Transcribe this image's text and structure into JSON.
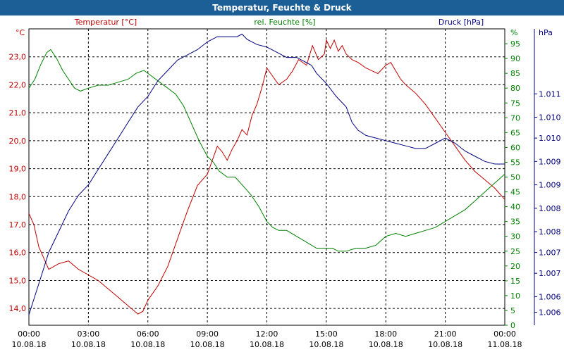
{
  "chart_data": {
    "type": "line",
    "title": "Temperatur, Feuchte & Druck",
    "x_ticks": [
      {
        "time": "00:00",
        "date": "10.08.18"
      },
      {
        "time": "03:00",
        "date": "10.08.18"
      },
      {
        "time": "06:00",
        "date": "10.08.18"
      },
      {
        "time": "09:00",
        "date": "10.08.18"
      },
      {
        "time": "12:00",
        "date": "10.08.18"
      },
      {
        "time": "15:00",
        "date": "10.08.18"
      },
      {
        "time": "18:00",
        "date": "10.08.18"
      },
      {
        "time": "21:00",
        "date": "10.08.18"
      },
      {
        "time": "00:00",
        "date": "11.08.18"
      }
    ],
    "xlim": [
      "10.08.18 00:00",
      "11.08.18 00:00"
    ],
    "axes": {
      "left": {
        "unit": "°C",
        "series_label": "Temperatur [°C]",
        "min": 13.4,
        "max": 24.0,
        "ticks": [
          "14,0",
          "15,0",
          "16,0",
          "17,0",
          "18,0",
          "19,0",
          "20,0",
          "21,0",
          "22,0",
          "23,0"
        ],
        "tick_values": [
          14,
          15,
          16,
          17,
          18,
          19,
          20,
          21,
          22,
          23
        ],
        "color": "#c00000"
      },
      "mid": {
        "unit": "%",
        "series_label": "rel. Feuchte [%]",
        "min": 0,
        "max": 100,
        "ticks": [
          "0",
          "5",
          "10",
          "15",
          "20",
          "25",
          "30",
          "35",
          "40",
          "45",
          "50",
          "55",
          "60",
          "65",
          "70",
          "75",
          "80",
          "85",
          "90",
          "95"
        ],
        "tick_values": [
          0,
          5,
          10,
          15,
          20,
          25,
          30,
          35,
          40,
          45,
          50,
          55,
          60,
          65,
          70,
          75,
          80,
          85,
          90,
          95
        ],
        "color": "#008000"
      },
      "right": {
        "unit": "hPa",
        "series_label": "Druck [hPa]",
        "min": 1005.6,
        "max": 1011.3,
        "ticks": [
          "1.006",
          "1.006",
          "1.007",
          "1.007",
          "1.008",
          "1.008",
          "1.009",
          "1.009",
          "1.010",
          "1.010",
          "1.011"
        ],
        "tick_values": [
          1005.85,
          1006.15,
          1006.6,
          1007.0,
          1007.4,
          1007.85,
          1008.3,
          1008.75,
          1009.2,
          1009.6,
          1010.05
        ],
        "color": "#000080"
      }
    },
    "series": [
      {
        "name": "Temperatur [°C]",
        "axis": "left",
        "color": "#c00000",
        "x_hours": [
          0,
          0.25,
          0.5,
          0.75,
          1,
          1.25,
          1.5,
          2,
          2.5,
          3,
          3.5,
          4,
          4.5,
          5,
          5.5,
          5.75,
          6,
          6.5,
          7,
          7.5,
          8,
          8.5,
          9,
          9.3,
          9.5,
          9.75,
          10,
          10.25,
          10.5,
          10.75,
          11,
          11.25,
          11.5,
          11.75,
          12,
          12.3,
          12.6,
          13,
          13.3,
          13.6,
          14,
          14.3,
          14.6,
          14.9,
          15,
          15.2,
          15.4,
          15.6,
          15.8,
          16,
          16.3,
          16.6,
          17,
          17.3,
          17.6,
          18,
          18.25,
          18.5,
          18.75,
          19,
          19.5,
          20,
          20.5,
          21,
          21.5,
          22,
          22.5,
          23,
          23.5,
          24
        ],
        "values": [
          17.4,
          17.0,
          16.2,
          15.8,
          15.4,
          15.5,
          15.6,
          15.7,
          15.4,
          15.2,
          15.0,
          14.7,
          14.4,
          14.1,
          13.8,
          13.9,
          14.3,
          14.8,
          15.5,
          16.5,
          17.5,
          18.4,
          18.8,
          19.4,
          19.8,
          19.6,
          19.3,
          19.7,
          20.0,
          20.4,
          20.2,
          20.9,
          21.3,
          21.9,
          22.6,
          22.3,
          22.0,
          22.2,
          22.5,
          22.9,
          22.7,
          23.4,
          22.9,
          23.1,
          23.6,
          23.3,
          23.6,
          23.2,
          23.4,
          23.1,
          22.9,
          22.8,
          22.6,
          22.5,
          22.4,
          22.7,
          22.8,
          22.5,
          22.2,
          22.0,
          21.7,
          21.3,
          20.8,
          20.3,
          19.8,
          19.3,
          18.9,
          18.6,
          18.3,
          17.9
        ]
      },
      {
        "name": "rel. Feuchte [%]",
        "axis": "mid",
        "color": "#008000",
        "x_hours": [
          0,
          0.3,
          0.6,
          0.9,
          1.1,
          1.4,
          1.7,
          2,
          2.3,
          2.6,
          3,
          3.5,
          4,
          4.5,
          5,
          5.4,
          5.8,
          6.2,
          6.6,
          7,
          7.4,
          7.8,
          8.2,
          8.6,
          9,
          9.3,
          9.6,
          10,
          10.4,
          10.8,
          11.2,
          11.6,
          12,
          12.3,
          12.6,
          13,
          13.5,
          14,
          14.5,
          15,
          15.3,
          15.6,
          16,
          16.5,
          17,
          17.5,
          18,
          18.5,
          19,
          19.5,
          20,
          20.5,
          21,
          21.5,
          22,
          22.5,
          23,
          23.5,
          24
        ],
        "values": [
          80,
          83,
          88,
          92,
          93,
          90,
          86,
          83,
          80,
          79,
          80,
          81,
          81,
          82,
          83,
          85,
          86,
          84,
          82,
          80,
          78,
          74,
          68,
          62,
          57,
          55,
          52,
          50,
          50,
          47,
          44,
          40,
          35,
          33,
          32,
          32,
          30,
          28,
          26,
          26,
          26,
          25,
          25,
          26,
          26,
          27,
          30,
          31,
          30,
          31,
          32,
          33,
          35,
          37,
          39,
          42,
          45,
          48,
          51
        ]
      },
      {
        "name": "Druck [hPa]",
        "axis": "right",
        "color": "#000080",
        "x_hours": [
          0,
          0.25,
          0.5,
          0.75,
          1,
          1.5,
          2,
          2.5,
          3,
          3.5,
          4,
          4.5,
          5,
          5.5,
          6,
          6.5,
          7,
          7.5,
          8,
          8.5,
          9,
          9.5,
          10,
          10.5,
          10.75,
          11,
          11.5,
          12,
          12.5,
          13,
          13.5,
          14,
          14.25,
          14.5,
          15,
          15.5,
          16,
          16.3,
          16.6,
          17,
          17.5,
          18,
          18.5,
          19,
          19.5,
          20,
          20.5,
          21,
          21.5,
          22,
          22.5,
          23,
          23.5,
          24
        ],
        "values": [
          1005.8,
          1006.1,
          1006.4,
          1006.7,
          1007.0,
          1007.4,
          1007.8,
          1008.1,
          1008.3,
          1008.6,
          1008.9,
          1009.2,
          1009.5,
          1009.8,
          1010.0,
          1010.3,
          1010.5,
          1010.7,
          1010.8,
          1010.9,
          1011.05,
          1011.15,
          1011.15,
          1011.15,
          1011.2,
          1011.1,
          1011.0,
          1010.95,
          1010.85,
          1010.75,
          1010.75,
          1010.65,
          1010.6,
          1010.45,
          1010.25,
          1010.0,
          1009.8,
          1009.5,
          1009.35,
          1009.25,
          1009.2,
          1009.15,
          1009.1,
          1009.05,
          1009.0,
          1009.0,
          1009.1,
          1009.2,
          1009.1,
          1008.95,
          1008.85,
          1008.75,
          1008.7,
          1008.7
        ]
      }
    ],
    "grid": true,
    "legend": "top"
  }
}
